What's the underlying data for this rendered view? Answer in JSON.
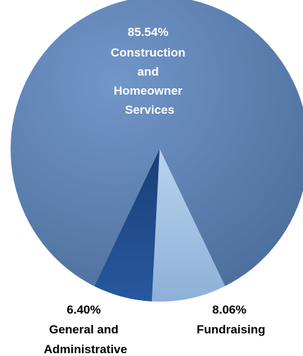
{
  "chart_data": {
    "type": "pie",
    "slices": [
      {
        "name": "Construction and Homeowner Services",
        "value": 85.54,
        "percent_label": "85.54%",
        "label_lines": [
          "Construction",
          "and",
          "Homeowner",
          "Services"
        ],
        "color": "#5f83b4"
      },
      {
        "name": "Fundraising",
        "value": 8.06,
        "percent_label": "8.06%",
        "label_lines": [
          "Fundraising"
        ],
        "color": "#a7c3e4"
      },
      {
        "name": "General and Administrative",
        "value": 6.4,
        "percent_label": "6.40%",
        "label_lines": [
          "General and",
          "Administrative"
        ],
        "color": "#1f4f92"
      }
    ],
    "title": "",
    "legend": "none"
  }
}
